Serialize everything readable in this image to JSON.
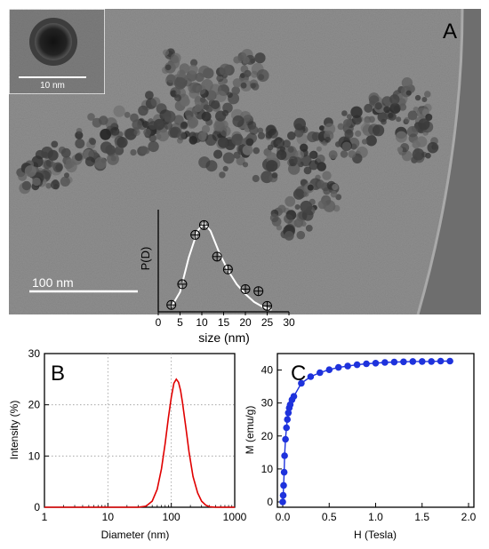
{
  "panels": {
    "a_label": "A",
    "b_label": "B",
    "c_label": "C"
  },
  "tem": {
    "scale_bar_label": "100 nm",
    "inset_scale_label": "10 nm",
    "colors": {
      "background": "#8e8e8e",
      "particles": "#3a3a3a"
    }
  },
  "chart_data": [
    {
      "id": "size-distribution",
      "type": "scatter",
      "title": "",
      "xlabel": "size (nm)",
      "ylabel": "P(D)",
      "xlim": [
        0,
        30
      ],
      "xticks": [
        0,
        5,
        10,
        15,
        20,
        25,
        30
      ],
      "points": [
        {
          "x": 3,
          "y": 0.07
        },
        {
          "x": 5.5,
          "y": 0.28
        },
        {
          "x": 8.5,
          "y": 0.78
        },
        {
          "x": 10.5,
          "y": 0.88
        },
        {
          "x": 13.5,
          "y": 0.56
        },
        {
          "x": 16,
          "y": 0.43
        },
        {
          "x": 20,
          "y": 0.23
        },
        {
          "x": 23,
          "y": 0.21
        },
        {
          "x": 25,
          "y": 0.06
        }
      ],
      "fit_curve": [
        [
          3,
          0.05
        ],
        [
          5,
          0.2
        ],
        [
          7,
          0.55
        ],
        [
          9,
          0.82
        ],
        [
          10.5,
          0.9
        ],
        [
          12,
          0.82
        ],
        [
          14,
          0.6
        ],
        [
          16,
          0.42
        ],
        [
          18,
          0.28
        ],
        [
          20,
          0.18
        ],
        [
          22,
          0.1
        ],
        [
          24,
          0.05
        ],
        [
          26,
          0.02
        ]
      ],
      "marker_color": "#000000",
      "curve_color": "#ffffff"
    },
    {
      "id": "dls",
      "type": "line",
      "title": "",
      "xlabel": "Diameter (nm)",
      "ylabel": "Intensity (%)",
      "xscale": "log",
      "xlim": [
        1,
        1000
      ],
      "ylim": [
        0,
        30
      ],
      "xticks": [
        1,
        10,
        100,
        1000
      ],
      "yticks": [
        0,
        10,
        20,
        30
      ],
      "grid": true,
      "line_color": "#e00000",
      "x": [
        30,
        40,
        50,
        60,
        70,
        80,
        90,
        100,
        110,
        120,
        130,
        140,
        150,
        170,
        190,
        220,
        260,
        300,
        350,
        400,
        500
      ],
      "y": [
        0,
        0.2,
        1.2,
        3.5,
        7.5,
        12.5,
        17.5,
        21.5,
        24.2,
        25.0,
        24.4,
        22.8,
        20.5,
        15.5,
        10.8,
        6.0,
        2.8,
        1.2,
        0.4,
        0.1,
        0
      ]
    },
    {
      "id": "magnetization",
      "type": "line",
      "title": "",
      "xlabel": "H (Tesla)",
      "ylabel": "M (emu/g)",
      "xlim": [
        0,
        2.0
      ],
      "ylim": [
        0,
        45
      ],
      "xticks": [
        0.0,
        0.5,
        1.0,
        1.5,
        2.0
      ],
      "yticks": [
        0,
        10,
        20,
        30,
        40
      ],
      "line_color": "#1e32dc",
      "marker": "circle",
      "x": [
        0.0,
        0.005,
        0.01,
        0.015,
        0.02,
        0.03,
        0.04,
        0.05,
        0.06,
        0.07,
        0.08,
        0.1,
        0.12,
        0.2,
        0.3,
        0.4,
        0.5,
        0.6,
        0.7,
        0.8,
        0.9,
        1.0,
        1.1,
        1.2,
        1.3,
        1.4,
        1.5,
        1.6,
        1.7,
        1.8
      ],
      "y": [
        0,
        2,
        5,
        9,
        14,
        19,
        22.5,
        25,
        27,
        28.5,
        29.5,
        31,
        32,
        36,
        38,
        39.2,
        40.1,
        40.8,
        41.2,
        41.6,
        41.9,
        42.1,
        42.3,
        42.4,
        42.5,
        42.6,
        42.6,
        42.6,
        42.7,
        42.7
      ]
    }
  ]
}
